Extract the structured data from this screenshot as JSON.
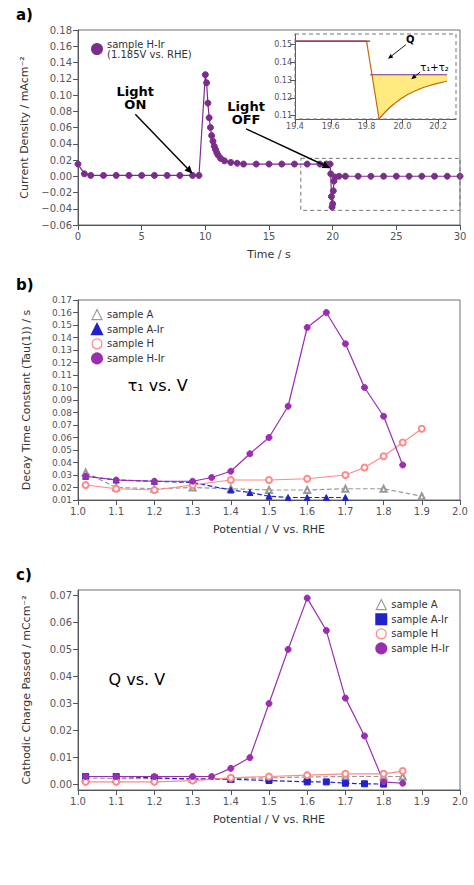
{
  "chart_data": [
    {
      "type": "line",
      "label": "a)",
      "x_label": "Time / s",
      "y_label": "Current Density / mAcm⁻²",
      "x": [
        0,
        0.5,
        1,
        2,
        3,
        4,
        5,
        6,
        7,
        8,
        9,
        9.5,
        10.0,
        10.1,
        10.2,
        10.3,
        10.4,
        10.5,
        10.6,
        10.7,
        10.8,
        10.9,
        11.0,
        11.2,
        11.5,
        12.0,
        12.5,
        13.0,
        14.0,
        15.0,
        16.0,
        17.0,
        18.0,
        19.0,
        19.5,
        19.8,
        19.85,
        19.9,
        19.95,
        20.0,
        20.05,
        20.1,
        20.2,
        20.5,
        21.0,
        22.0,
        23.0,
        24.0,
        25.0,
        26.0,
        27.0,
        28.0,
        29.0,
        30.0
      ],
      "series": [
        {
          "name": "sample H-Ir\n(1.185V vs. RHE)",
          "color": "#7b2d8b",
          "marker": "circle",
          "line_style": "solid",
          "values": [
            0.015,
            0.003,
            0.001,
            0.001,
            0.001,
            0.001,
            0.001,
            0.001,
            0.001,
            0.001,
            0.001,
            0.001,
            0.125,
            0.115,
            0.09,
            0.072,
            0.06,
            0.05,
            0.043,
            0.037,
            0.033,
            0.029,
            0.026,
            0.022,
            0.019,
            0.017,
            0.016,
            0.015,
            0.015,
            0.015,
            0.015,
            0.015,
            0.015,
            0.015,
            0.015,
            0.015,
            0.003,
            -0.025,
            -0.038,
            -0.034,
            -0.018,
            -0.006,
            -0.001,
            0.0,
            0.0,
            0.0,
            0.0,
            0.0,
            0.0,
            0.0,
            0.0,
            0.0,
            0.0,
            0.0
          ]
        }
      ],
      "xlim": [
        0,
        30
      ],
      "ylim": [
        -0.06,
        0.18
      ],
      "xticks": [
        0,
        5,
        10,
        15,
        20,
        25,
        30
      ],
      "yticks": [
        {
          "value": -0.06,
          "label": "−0.06"
        },
        {
          "value": -0.04,
          "label": "−0.04"
        },
        {
          "value": -0.02,
          "label": "−0.02"
        },
        {
          "value": 0.0,
          "label": "0.00"
        },
        0.02,
        0.04,
        0.06,
        0.08,
        {
          "value": 0.1,
          "label": "0.10"
        },
        0.12,
        0.14,
        0.16,
        0.18
      ],
      "grid": false,
      "legend": "upper left",
      "annotations": [
        {
          "text": "Light\nON",
          "x": 4.5,
          "y": 0.08,
          "arrow_x": 9.0,
          "arrow_y": 0.003
        },
        {
          "text": "Light\nOFF",
          "x": 13.2,
          "y": 0.062,
          "arrow_x": 19.82,
          "arrow_y": 0.01
        }
      ],
      "zoom_box": {
        "x": [
          17.5,
          30.0
        ],
        "y": [
          -0.042,
          0.022
        ]
      },
      "inset": {
        "type": "line",
        "xlim": [
          19.4,
          20.3
        ],
        "ylim": [
          0.108,
          0.156
        ],
        "xticks": [
          19.4,
          19.6,
          19.8,
          {
            "value": 20.0,
            "label": "20.0"
          },
          20.2
        ],
        "yticks": [
          0.11,
          0.12,
          0.13,
          0.14,
          0.15
        ],
        "steady": {
          "color": "#7b2d8b",
          "x": [
            19.4,
            19.82,
            null,
            19.82,
            20.25
          ],
          "values": [
            0.152,
            0.152,
            null,
            0.133,
            0.133
          ]
        },
        "decay": {
          "color": "#cc6600",
          "x": [
            19.4,
            19.8,
            19.8302,
            19.87,
            19.89,
            19.91,
            19.93,
            19.95,
            19.97,
            19.99,
            20.01,
            20.03,
            20.05,
            20.07,
            20.09,
            20.11,
            20.13,
            20.15,
            20.17,
            20.19,
            20.21,
            20.23,
            20.25
          ],
          "values": [
            0.152,
            0.152,
            0.133,
            0.108,
            0.1104,
            0.1125,
            0.1145,
            0.1162,
            0.1178,
            0.1193,
            0.1206,
            0.1218,
            0.1228,
            0.1238,
            0.1247,
            0.1255,
            0.1262,
            0.1268,
            0.1274,
            0.128,
            0.1284,
            0.1289,
            0.1293
          ]
        },
        "fill": {
          "color": "#FFD700",
          "baseline": 0.133
        },
        "annotations": [
          {
            "text": "Q",
            "x": 20.02,
            "y": 0.15,
            "arrow_x": 19.92,
            "arrow_y": 0.142
          },
          {
            "text": "τ₁+τ₂",
            "x": 20.1,
            "y": 0.1345,
            "arrow_x": 20.05,
            "arrow_y": 0.1305
          }
        ]
      }
    },
    {
      "type": "line",
      "label": "b)",
      "x_label": "Potential / V vs. RHE",
      "y_label": "Decay Time Constant (Tau(1)) / s",
      "xlim": [
        1.0,
        2.0
      ],
      "ylim": [
        0.01,
        0.17
      ],
      "xticks": [
        {
          "value": 1.0,
          "label": "1.0"
        },
        1.1,
        1.2,
        1.3,
        1.4,
        1.5,
        1.6,
        1.7,
        1.8,
        1.9,
        {
          "value": 2.0,
          "label": "2.0"
        }
      ],
      "yticks": [
        0.01,
        0.02,
        0.03,
        0.04,
        0.05,
        0.06,
        0.07,
        0.08,
        0.09,
        {
          "value": 0.1,
          "label": "0.10"
        },
        0.11,
        0.12,
        0.13,
        0.14,
        0.15,
        0.16,
        0.17
      ],
      "grid": false,
      "legend": "upper left",
      "annotations": [
        {
          "text": "τ₁ vs. V",
          "x": 1.13,
          "y": 0.095
        }
      ],
      "series": [
        {
          "name": "sample A",
          "color": "#999999",
          "marker": "triangle-open",
          "line_style": "dashed",
          "x": [
            1.02,
            1.1,
            1.2,
            1.3,
            1.4,
            1.5,
            1.6,
            1.7,
            1.8,
            1.9
          ],
          "values": [
            0.032,
            0.02,
            0.019,
            0.02,
            0.019,
            0.018,
            0.018,
            0.019,
            0.019,
            0.013
          ]
        },
        {
          "name": "sample A-Ir",
          "color": "#2222cc",
          "marker": "triangle",
          "line_style": "dashed",
          "x": [
            1.02,
            1.1,
            1.2,
            1.3,
            1.4,
            1.45,
            1.5,
            1.55,
            1.6,
            1.65,
            1.7
          ],
          "values": [
            0.029,
            0.026,
            0.025,
            0.024,
            0.018,
            0.016,
            0.013,
            0.012,
            0.012,
            0.012,
            0.012
          ]
        },
        {
          "name": "sample H",
          "color": "#ff8888",
          "marker": "circle-open",
          "line_style": "solid",
          "x": [
            1.02,
            1.1,
            1.2,
            1.3,
            1.4,
            1.5,
            1.6,
            1.7,
            1.75,
            1.8,
            1.85,
            1.9
          ],
          "values": [
            0.022,
            0.019,
            0.018,
            0.022,
            0.026,
            0.026,
            0.027,
            0.03,
            0.036,
            0.045,
            0.056,
            0.067
          ]
        },
        {
          "name": "sample H-Ir",
          "color": "#9b2db0",
          "marker": "circle",
          "line_style": "solid",
          "x": [
            1.02,
            1.1,
            1.2,
            1.3,
            1.35,
            1.4,
            1.45,
            1.5,
            1.55,
            1.6,
            1.65,
            1.7,
            1.75,
            1.8,
            1.85
          ],
          "values": [
            0.029,
            0.026,
            0.025,
            0.025,
            0.028,
            0.033,
            0.047,
            0.06,
            0.085,
            0.148,
            0.16,
            0.135,
            0.1,
            0.077,
            0.038
          ]
        }
      ]
    },
    {
      "type": "line",
      "label": "c)",
      "x_label": "Potential / V vs. RHE",
      "y_label": "Cathodic Charge Passed / mCcm⁻²",
      "xlim": [
        1.0,
        2.0
      ],
      "ylim": [
        -0.002,
        0.072
      ],
      "xticks": [
        {
          "value": 1.0,
          "label": "1.0"
        },
        1.1,
        1.2,
        1.3,
        1.4,
        1.5,
        1.6,
        1.7,
        1.8,
        1.9,
        {
          "value": 2.0,
          "label": "2.0"
        }
      ],
      "yticks": [
        {
          "value": 0.0,
          "label": "0.00"
        },
        0.01,
        0.02,
        0.03,
        0.04,
        0.05,
        0.06,
        0.07
      ],
      "grid": false,
      "legend": "upper right",
      "annotations": [
        {
          "text": "Q vs. V",
          "x": 1.08,
          "y": 0.036
        }
      ],
      "series": [
        {
          "name": "sample A",
          "color": "#999999",
          "marker": "triangle-open",
          "line_style": "dashed",
          "x": [
            1.02,
            1.1,
            1.2,
            1.3,
            1.4,
            1.5,
            1.6,
            1.7,
            1.8,
            1.85
          ],
          "values": [
            0.0025,
            0.0022,
            0.0022,
            0.0022,
            0.0022,
            0.0025,
            0.0028,
            0.003,
            0.003,
            0.003
          ]
        },
        {
          "name": "sample A-Ir",
          "color": "#2222cc",
          "marker": "square",
          "line_style": "dashed",
          "x": [
            1.02,
            1.1,
            1.2,
            1.3,
            1.4,
            1.5,
            1.6,
            1.65,
            1.7,
            1.75,
            1.8
          ],
          "values": [
            0.003,
            0.003,
            0.0025,
            0.002,
            0.002,
            0.0015,
            0.001,
            0.001,
            0.0005,
            0.0003,
            0.0002
          ]
        },
        {
          "name": "sample H",
          "color": "#ff8888",
          "marker": "circle-open",
          "line_style": "solid",
          "x": [
            1.02,
            1.1,
            1.2,
            1.3,
            1.4,
            1.5,
            1.6,
            1.7,
            1.8,
            1.85
          ],
          "values": [
            0.001,
            0.001,
            0.001,
            0.0015,
            0.0025,
            0.003,
            0.0035,
            0.004,
            0.004,
            0.005
          ]
        },
        {
          "name": "sample H-Ir",
          "color": "#9b2db0",
          "marker": "circle",
          "line_style": "solid",
          "x": [
            1.02,
            1.1,
            1.2,
            1.3,
            1.35,
            1.4,
            1.45,
            1.5,
            1.55,
            1.6,
            1.65,
            1.7,
            1.75,
            1.8,
            1.85
          ],
          "values": [
            0.003,
            0.003,
            0.003,
            0.003,
            0.003,
            0.006,
            0.01,
            0.03,
            0.05,
            0.069,
            0.057,
            0.032,
            0.018,
            0.001,
            0.0005
          ]
        }
      ]
    }
  ]
}
